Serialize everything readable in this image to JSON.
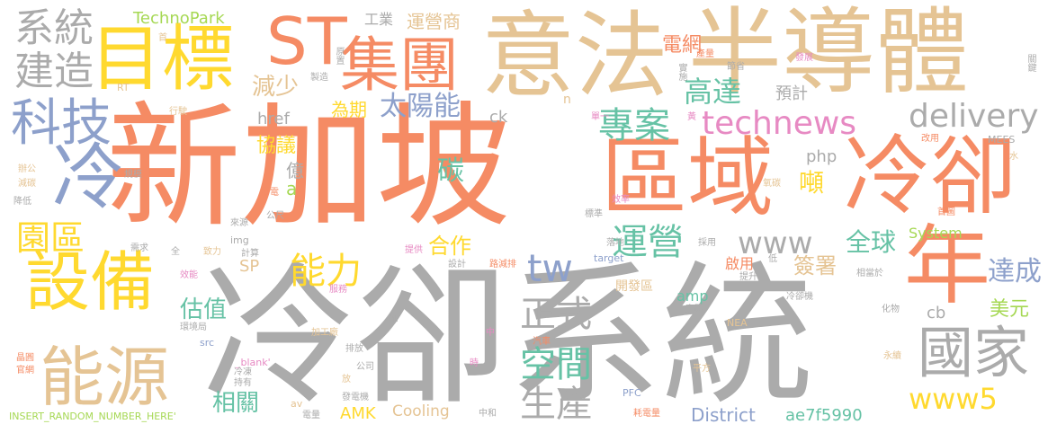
{
  "palette": {
    "orange": "#F58B64",
    "tan": "#E5C494",
    "gray": "#ABABAB",
    "blue": "#8DA0CB",
    "teal": "#66C2A5",
    "yellow": "#FFD92F",
    "green": "#A6D854",
    "pink": "#E78AC3"
  },
  "words": [
    {
      "text": "新加坡",
      "color": "orange"
    },
    {
      "text": "冷卻系統",
      "color": "gray"
    },
    {
      "text": "區域",
      "color": "orange"
    },
    {
      "text": "冷卻",
      "color": "orange"
    },
    {
      "text": "半導體",
      "color": "tan"
    },
    {
      "text": "意法",
      "color": "tan"
    },
    {
      "text": "目標",
      "color": "yellow"
    },
    {
      "text": "ST",
      "color": "orange"
    },
    {
      "text": "集團",
      "color": "orange"
    },
    {
      "text": "系統",
      "color": "gray"
    },
    {
      "text": "建造",
      "color": "gray"
    },
    {
      "text": "科技",
      "color": "blue"
    },
    {
      "text": "冷",
      "color": "blue"
    },
    {
      "text": "設備",
      "color": "yellow"
    },
    {
      "text": "能源",
      "color": "tan"
    },
    {
      "text": "年",
      "color": "orange"
    },
    {
      "text": "國家",
      "color": "gray"
    },
    {
      "text": "technews",
      "color": "pink"
    },
    {
      "text": "delivery",
      "color": "gray"
    },
    {
      "text": "www",
      "color": "gray"
    },
    {
      "text": "www5",
      "color": "yellow"
    },
    {
      "text": "tw",
      "color": "blue"
    },
    {
      "text": "專案",
      "color": "teal"
    },
    {
      "text": "高達",
      "color": "teal"
    },
    {
      "text": "太陽能",
      "color": "blue"
    },
    {
      "text": "運營",
      "color": "teal"
    },
    {
      "text": "正式",
      "color": "gray"
    },
    {
      "text": "空間",
      "color": "teal"
    },
    {
      "text": "生產",
      "color": "gray"
    },
    {
      "text": "能力",
      "color": "yellow"
    },
    {
      "text": "園區",
      "color": "yellow"
    },
    {
      "text": "減少",
      "color": "tan"
    },
    {
      "text": "為期",
      "color": "yellow"
    },
    {
      "text": "碳",
      "color": "teal"
    },
    {
      "text": "噸",
      "color": "yellow"
    },
    {
      "text": "全球",
      "color": "teal"
    },
    {
      "text": "達成",
      "color": "blue"
    },
    {
      "text": "美元",
      "color": "green"
    },
    {
      "text": "簽署",
      "color": "tan"
    },
    {
      "text": "合作",
      "color": "yellow"
    },
    {
      "text": "估值",
      "color": "teal"
    },
    {
      "text": "相關",
      "color": "teal"
    },
    {
      "text": "協議",
      "color": "yellow"
    },
    {
      "text": "億",
      "color": "gray"
    },
    {
      "text": "a",
      "color": "green"
    },
    {
      "text": "TechnoPark",
      "color": "green"
    },
    {
      "text": "工業",
      "color": "gray"
    },
    {
      "text": "運營商",
      "color": "tan"
    },
    {
      "text": "電網",
      "color": "orange"
    },
    {
      "text": "預計",
      "color": "gray"
    },
    {
      "text": "href",
      "color": "gray"
    },
    {
      "text": "ck",
      "color": "gray"
    },
    {
      "text": "php",
      "color": "gray"
    },
    {
      "text": "SP",
      "color": "tan"
    },
    {
      "text": "AMK",
      "color": "yellow"
    },
    {
      "text": "Cooling",
      "color": "tan"
    },
    {
      "text": "District",
      "color": "blue"
    },
    {
      "text": "ae7f5990",
      "color": "teal"
    },
    {
      "text": "System",
      "color": "green"
    },
    {
      "text": "amp",
      "color": "teal"
    },
    {
      "text": "cb",
      "color": "gray"
    },
    {
      "text": "開發區",
      "color": "tan"
    },
    {
      "text": "啟用",
      "color": "orange"
    },
    {
      "text": "INSERT_RANDOM_NUMBER_HERE'",
      "color": "green"
    },
    {
      "text": "RT",
      "color": "tan"
    },
    {
      "text": "n",
      "color": "tan"
    },
    {
      "text": "MEES",
      "color": "gray"
    },
    {
      "text": "NEA",
      "color": "tan"
    },
    {
      "text": "PFC",
      "color": "blue"
    },
    {
      "text": "target",
      "color": "blue"
    },
    {
      "text": "img",
      "color": "gray"
    },
    {
      "text": "src",
      "color": "blue"
    },
    {
      "text": "_blank'",
      "color": "pink"
    },
    {
      "text": "av",
      "color": "tan"
    },
    {
      "text": "首",
      "color": "tan"
    },
    {
      "text": "原置",
      "color": "gray"
    },
    {
      "text": "製造",
      "color": "gray"
    },
    {
      "text": "實施",
      "color": "gray"
    },
    {
      "text": "產量",
      "color": "orange"
    },
    {
      "text": "節省",
      "color": "gray"
    },
    {
      "text": "發展",
      "color": "pink"
    },
    {
      "text": "關鍵",
      "color": "gray"
    },
    {
      "text": "行駛",
      "color": "tan"
    },
    {
      "text": "單一",
      "color": "pink"
    },
    {
      "text": "黃",
      "color": "pink"
    },
    {
      "text": "改用",
      "color": "orange"
    },
    {
      "text": "水",
      "color": "tan"
    },
    {
      "text": "辦公",
      "color": "tan"
    },
    {
      "text": "減碳",
      "color": "tan"
    },
    {
      "text": "規模",
      "color": "gray"
    },
    {
      "text": "降低",
      "color": "gray"
    },
    {
      "text": "發電",
      "color": "orange"
    },
    {
      "text": "氧碳",
      "color": "tan"
    },
    {
      "text": "效率",
      "color": "pink"
    },
    {
      "text": "首圖",
      "color": "orange"
    },
    {
      "text": "標準",
      "color": "gray"
    },
    {
      "text": "來源",
      "color": "gray"
    },
    {
      "text": "公尺",
      "color": "gray"
    },
    {
      "text": "需求",
      "color": "gray"
    },
    {
      "text": "全",
      "color": "gray"
    },
    {
      "text": "致力",
      "color": "tan"
    },
    {
      "text": "計算",
      "color": "gray"
    },
    {
      "text": "提供",
      "color": "pink"
    },
    {
      "text": "設計",
      "color": "gray"
    },
    {
      "text": "路減排",
      "color": "orange"
    },
    {
      "text": "落地",
      "color": "gray"
    },
    {
      "text": "採用",
      "color": "gray"
    },
    {
      "text": "低",
      "color": "gray"
    },
    {
      "text": "相當於",
      "color": "gray"
    },
    {
      "text": "提升",
      "color": "gray"
    },
    {
      "text": "冷卻機",
      "color": "gray"
    },
    {
      "text": "效能",
      "color": "pink"
    },
    {
      "text": "服務",
      "color": "pink"
    },
    {
      "text": "實踐",
      "color": "gray"
    },
    {
      "text": "化物",
      "color": "gray"
    },
    {
      "text": "環境局",
      "color": "gray"
    },
    {
      "text": "加工廠",
      "color": "tan"
    },
    {
      "text": "排放",
      "color": "gray"
    },
    {
      "text": "中",
      "color": "pink"
    },
    {
      "text": "汽車",
      "color": "orange"
    },
    {
      "text": "晶圓",
      "color": "orange"
    },
    {
      "text": "官網",
      "color": "orange"
    },
    {
      "text": "公司",
      "color": "gray"
    },
    {
      "text": "時",
      "color": "pink"
    },
    {
      "text": "平方",
      "color": "tan"
    },
    {
      "text": "永續",
      "color": "tan"
    },
    {
      "text": "冷凍",
      "color": "gray"
    },
    {
      "text": "持有",
      "color": "gray"
    },
    {
      "text": "放",
      "color": "tan"
    },
    {
      "text": "發電機",
      "color": "gray"
    },
    {
      "text": "電量",
      "color": "gray"
    },
    {
      "text": "中和",
      "color": "gray"
    },
    {
      "text": "耗電量",
      "color": "orange"
    },
    {
      "text": "師",
      "color": "gray"
    }
  ]
}
